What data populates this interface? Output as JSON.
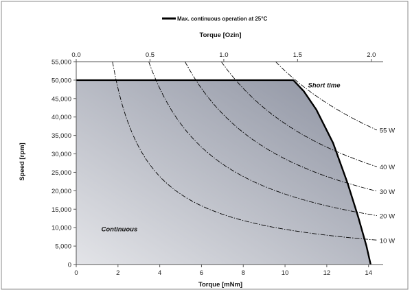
{
  "chart_data": {
    "type": "area",
    "legend": {
      "label": "Max. continuous operation at 25°C",
      "placement": "top"
    },
    "x_primary": {
      "title": "Torque [mNm]",
      "range": [
        0,
        14.7
      ],
      "ticks": [
        0,
        2,
        4,
        6,
        8,
        10,
        12,
        14
      ],
      "tick_labels": [
        "0",
        "2",
        "4",
        "6",
        "8",
        "10",
        "12",
        "14"
      ]
    },
    "x_secondary": {
      "title": "Torque [Ozin]",
      "range": [
        0,
        2.08
      ],
      "ticks": [
        0.0,
        0.5,
        1.0,
        1.5,
        2.0
      ],
      "tick_labels": [
        "0.0",
        "0.5",
        "1.0",
        "1.5",
        "2.0"
      ]
    },
    "y": {
      "title": "Speed [rpm]",
      "range": [
        0,
        55000
      ],
      "ticks": [
        0,
        5000,
        10000,
        15000,
        20000,
        25000,
        30000,
        35000,
        40000,
        45000,
        50000,
        55000
      ],
      "tick_labels": [
        "0",
        "5,000",
        "10,000",
        "15,000",
        "20,000",
        "25,000",
        "30,000",
        "35,000",
        "40,000",
        "45,000",
        "50,000",
        "55,000"
      ]
    },
    "regions": [
      {
        "label": "Continuous",
        "anchor": [
          1.2,
          9000
        ]
      },
      {
        "label": "Short time",
        "anchor": [
          11.1,
          48000
        ]
      }
    ],
    "boundary": {
      "name": "Max. continuous operation at 25°C",
      "points": [
        [
          0,
          50000
        ],
        [
          10.4,
          50000
        ],
        [
          10.9,
          47000
        ],
        [
          11.5,
          42000
        ],
        [
          12.3,
          33000
        ],
        [
          13.0,
          22000
        ],
        [
          13.5,
          13000
        ],
        [
          13.9,
          5000
        ],
        [
          14.1,
          0
        ]
      ]
    },
    "power_curves": [
      {
        "label": "10 W",
        "watts": 10
      },
      {
        "label": "20 W",
        "watts": 20
      },
      {
        "label": "30 W",
        "watts": 30
      },
      {
        "label": "40 W",
        "watts": 40
      },
      {
        "label": "55 W",
        "watts": 55
      }
    ],
    "grid": false,
    "colors": {
      "fill_light": "#e3e4e8",
      "fill_dark": "#8c91a0",
      "boundary": "#000000",
      "curves": "#000000",
      "axis": "#555555"
    }
  }
}
